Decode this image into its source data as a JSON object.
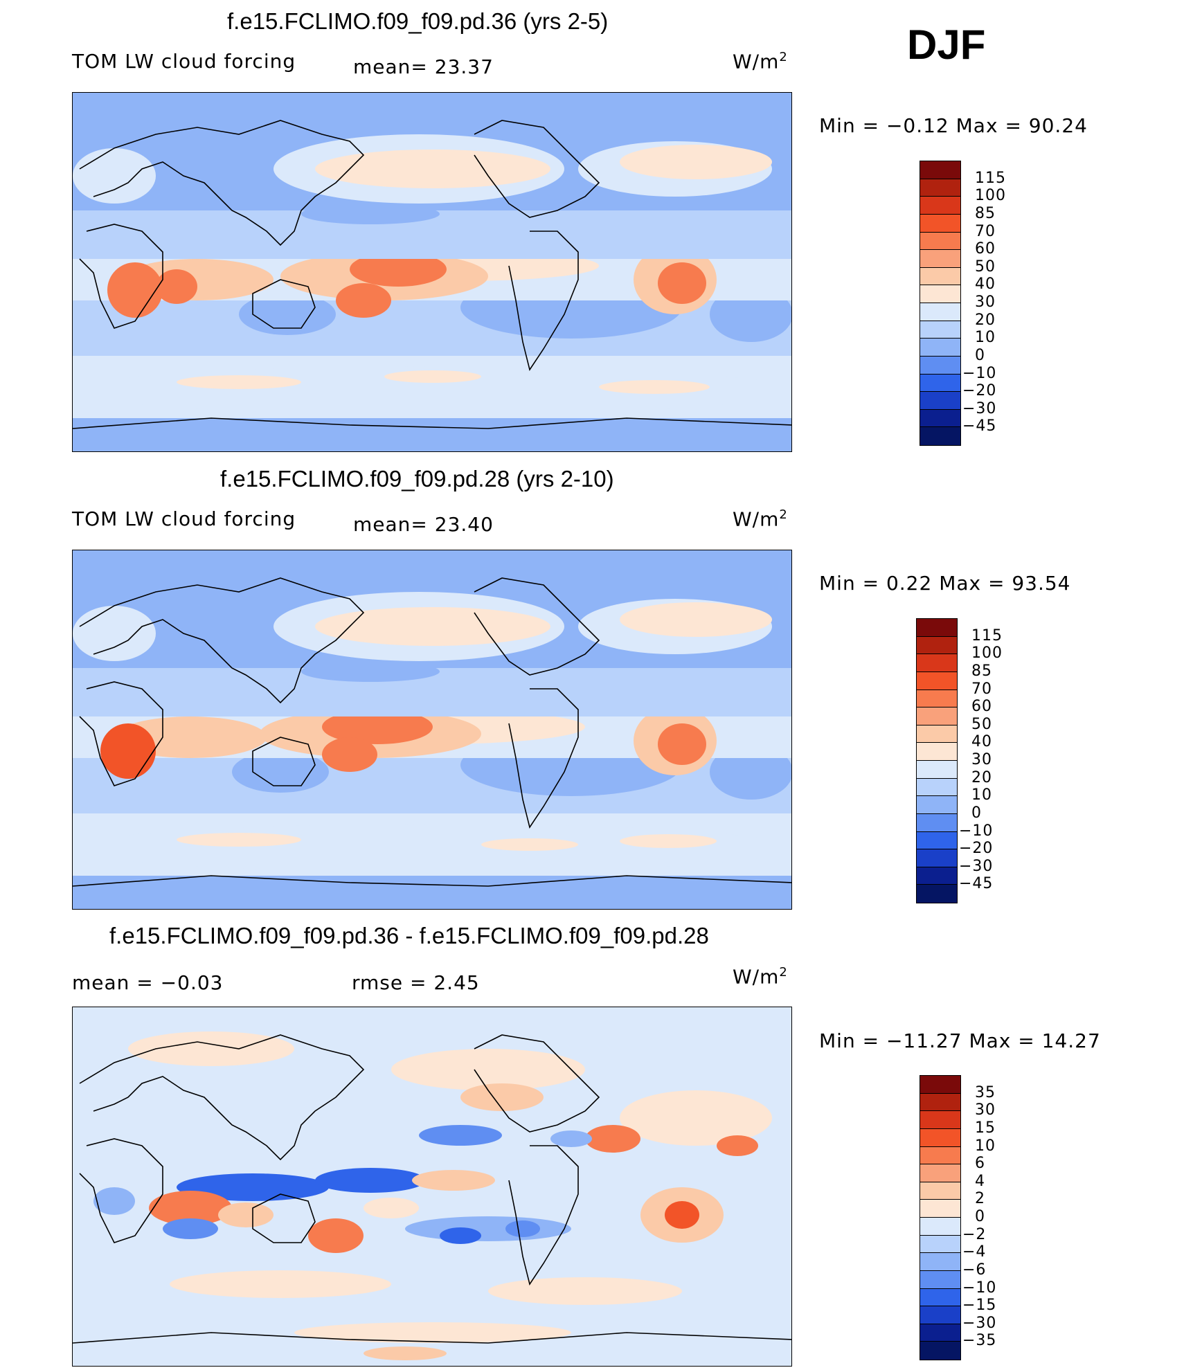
{
  "season": "DJF",
  "panels": [
    {
      "title": "f.e15.FCLIMO.f09_f09.pd.36 (yrs 2-5)",
      "left_text": "TOM LW cloud forcing",
      "mid_text": "mean=   23.37",
      "units": "W/m",
      "units_sup": "2",
      "minmax": "Min =   −0.12 Max =   90.24",
      "levels": [
        "115",
        "100",
        "85",
        "70",
        "60",
        "50",
        "40",
        "30",
        "20",
        "10",
        "0",
        "−10",
        "−20",
        "−30",
        "−45"
      ],
      "colors": [
        "#7a0a0a",
        "#b0220f",
        "#d9371a",
        "#f25428",
        "#f77b4e",
        "#f9a17b",
        "#fbcaa8",
        "#fde6d4",
        "#dbe9fb",
        "#b8d2fb",
        "#8fb4f7",
        "#5f8ef2",
        "#2f64ea",
        "#1a40c8",
        "#0b1f8f",
        "#051563"
      ]
    },
    {
      "title": "f.e15.FCLIMO.f09_f09.pd.28 (yrs 2-10)",
      "left_text": "TOM LW cloud forcing",
      "mid_text": "mean=   23.40",
      "units": "W/m",
      "units_sup": "2",
      "minmax": "Min =    0.22 Max =   93.54",
      "levels": [
        "115",
        "100",
        "85",
        "70",
        "60",
        "50",
        "40",
        "30",
        "20",
        "10",
        "0",
        "−10",
        "−20",
        "−30",
        "−45"
      ],
      "colors": [
        "#7a0a0a",
        "#b0220f",
        "#d9371a",
        "#f25428",
        "#f77b4e",
        "#f9a17b",
        "#fbcaa8",
        "#fde6d4",
        "#dbe9fb",
        "#b8d2fb",
        "#8fb4f7",
        "#5f8ef2",
        "#2f64ea",
        "#1a40c8",
        "#0b1f8f",
        "#051563"
      ]
    },
    {
      "title": "f.e15.FCLIMO.f09_f09.pd.36 - f.e15.FCLIMO.f09_f09.pd.28",
      "left_text": "mean =   −0.03",
      "mid_text": "rmse =    2.45",
      "units": "W/m",
      "units_sup": "2",
      "minmax": "Min = −11.27 Max =   14.27",
      "levels": [
        "35",
        "30",
        "15",
        "10",
        "6",
        "4",
        "2",
        "0",
        "−2",
        "−4",
        "−6",
        "−10",
        "−15",
        "−30",
        "−35"
      ],
      "colors": [
        "#7a0a0a",
        "#b0220f",
        "#d9371a",
        "#f25428",
        "#f77b4e",
        "#f9a17b",
        "#fbcaa8",
        "#fde6d4",
        "#dbe9fb",
        "#b8d2fb",
        "#8fb4f7",
        "#5f8ef2",
        "#2f64ea",
        "#1a40c8",
        "#0b1f8f",
        "#051563"
      ]
    }
  ],
  "chart_data": [
    {
      "type": "heatmap",
      "title": "f.e15.FCLIMO.f09_f09.pd.36 (yrs 2-5)",
      "variable": "TOM LW cloud forcing",
      "units": "W/m2",
      "mean": 23.37,
      "min": -0.12,
      "max": 90.24,
      "colorbar_levels": [
        115,
        100,
        85,
        70,
        60,
        50,
        40,
        30,
        20,
        10,
        0,
        -10,
        -20,
        -30,
        -45
      ],
      "projection": "cylindrical equidistant, Pacific-centered"
    },
    {
      "type": "heatmap",
      "title": "f.e15.FCLIMO.f09_f09.pd.28 (yrs 2-10)",
      "variable": "TOM LW cloud forcing",
      "units": "W/m2",
      "mean": 23.4,
      "min": 0.22,
      "max": 93.54,
      "colorbar_levels": [
        115,
        100,
        85,
        70,
        60,
        50,
        40,
        30,
        20,
        10,
        0,
        -10,
        -20,
        -30,
        -45
      ],
      "projection": "cylindrical equidistant, Pacific-centered"
    },
    {
      "type": "heatmap",
      "title": "f.e15.FCLIMO.f09_f09.pd.36 - f.e15.FCLIMO.f09_f09.pd.28",
      "units": "W/m2",
      "mean": -0.03,
      "rmse": 2.45,
      "min": -11.27,
      "max": 14.27,
      "colorbar_levels": [
        35,
        30,
        15,
        10,
        6,
        4,
        2,
        0,
        -2,
        -4,
        -6,
        -10,
        -15,
        -30,
        -35
      ],
      "projection": "cylindrical equidistant, Pacific-centered"
    }
  ]
}
